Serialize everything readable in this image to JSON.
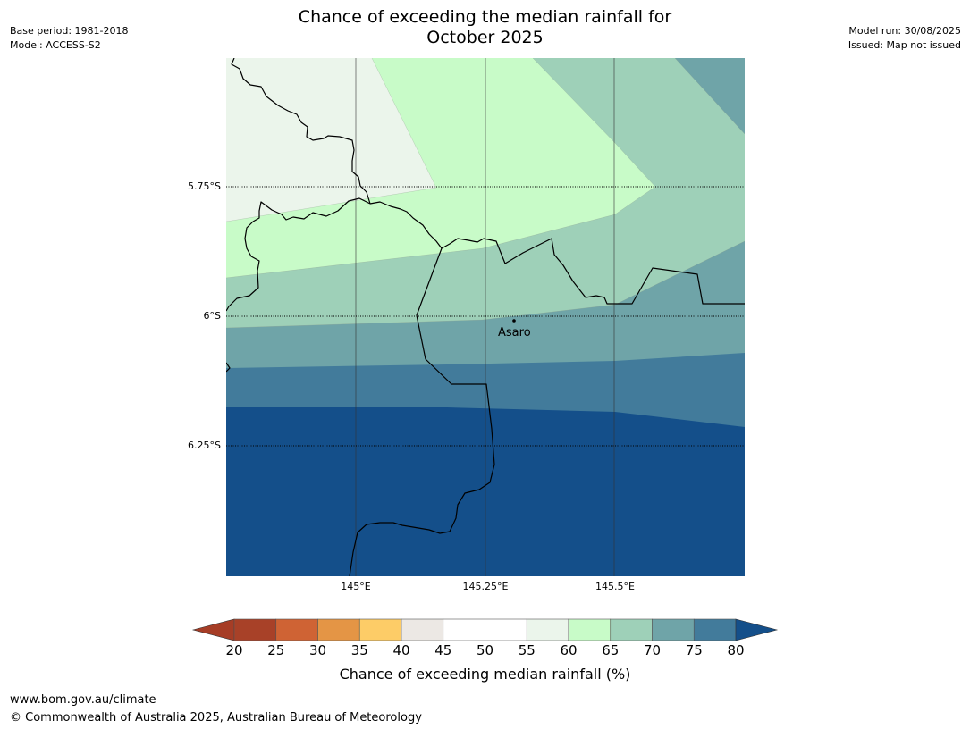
{
  "header": {
    "title_line1": "Chance of exceeding the median rainfall for",
    "title_line2": "October 2025",
    "base_period": "Base period: 1981-2018",
    "model": "Model: ACCESS-S2",
    "model_run": "Model run: 30/08/2025",
    "issued": "Issued: Map not issued"
  },
  "map": {
    "lat_labels": [
      "5.75°S",
      "6°S",
      "6.25°S"
    ],
    "lon_labels": [
      "145°E",
      "145.25°E",
      "145.5°E"
    ],
    "place": {
      "name": "Asaro"
    }
  },
  "legend": {
    "label": "Chance of exceeding median rainfall (%)",
    "ticks": [
      "20",
      "25",
      "30",
      "35",
      "40",
      "45",
      "50",
      "55",
      "60",
      "65",
      "70",
      "75",
      "80"
    ],
    "colors": [
      "#a84128",
      "#cf6334",
      "#e49545",
      "#fdcc67",
      "#ece8e4",
      "#ffffff",
      "#ffffff",
      "#ebf5eb",
      "#c8fbc8",
      "#9ed0b8",
      "#6fa4a8",
      "#427b9b",
      "#144f8a"
    ],
    "below_color": "#a63d26",
    "above_color": "#144f8a"
  },
  "footer": {
    "url": "www.bom.gov.au/climate",
    "copyright": "© Commonwealth of Australia 2025, Australian Bureau of Meteorology"
  }
}
